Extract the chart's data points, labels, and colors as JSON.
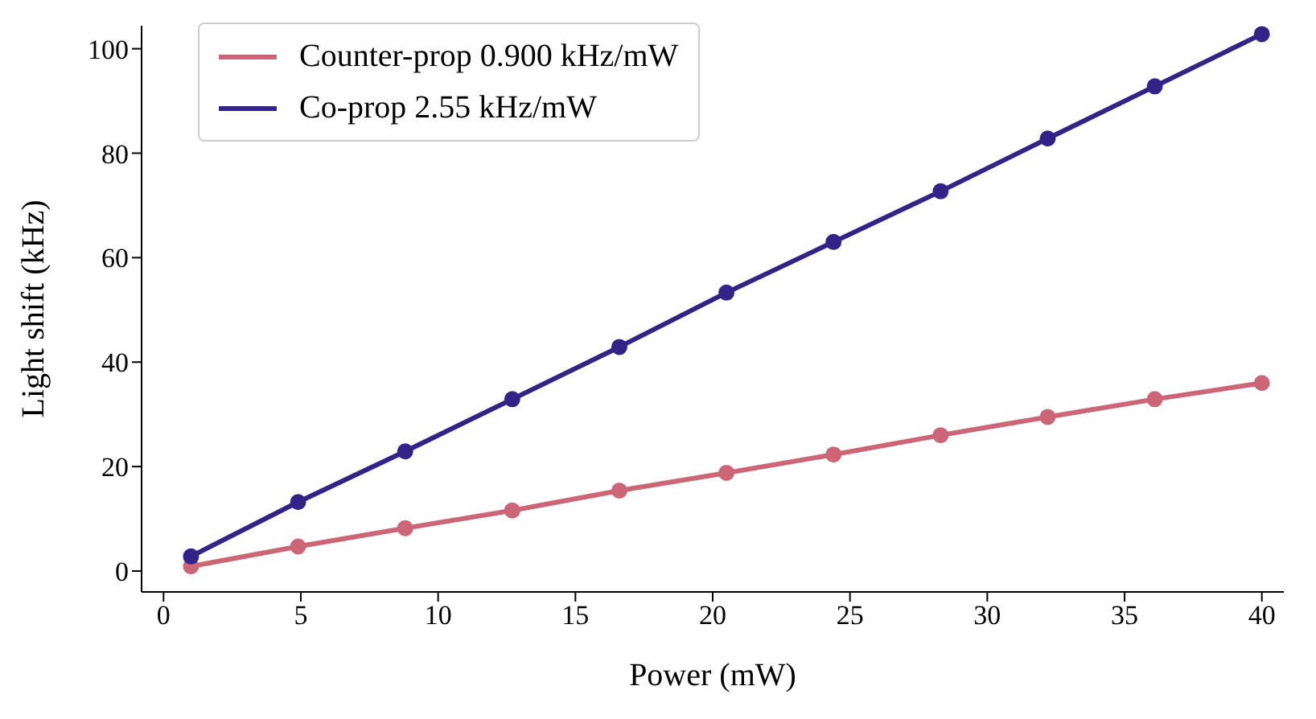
{
  "chart_data": {
    "type": "line",
    "xlabel": "Power (mW)",
    "ylabel": "Light shift (kHz)",
    "x": [
      1,
      4.9,
      8.8,
      12.7,
      16.6,
      20.5,
      24.4,
      28.3,
      32.2,
      36.1,
      40
    ],
    "series": [
      {
        "name": "Counter-prop 0.900 kHz/mW",
        "color": "#cc6677",
        "values": [
          0.9,
          4.7,
          8.2,
          11.6,
          15.4,
          18.8,
          22.3,
          26,
          29.5,
          32.9,
          36
        ]
      },
      {
        "name": "Co-prop 2.55 kHz/mW",
        "color": "#332288",
        "values": [
          2.8,
          13.2,
          22.9,
          32.9,
          42.9,
          53.3,
          63,
          72.7,
          82.8,
          92.8,
          102.8
        ]
      }
    ],
    "xlim": [
      -0.8,
      40.8
    ],
    "ylim": [
      -4,
      104.4
    ],
    "xticks": [
      0,
      5,
      10,
      15,
      20,
      25,
      30,
      35,
      40
    ],
    "yticks": [
      0,
      20,
      40,
      60,
      80,
      100
    ],
    "grid": false,
    "legend": "top left",
    "marker": "circle",
    "line_style": "solid"
  }
}
